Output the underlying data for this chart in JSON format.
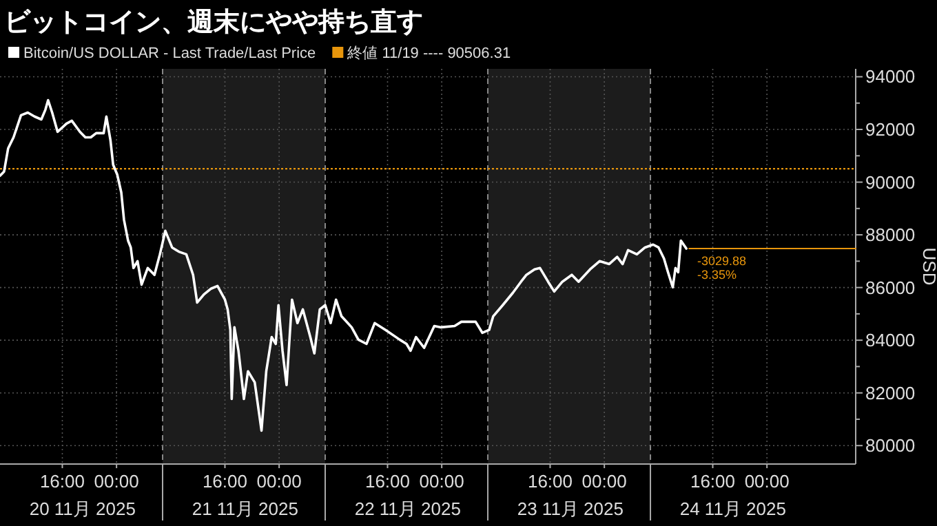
{
  "chart_data": {
    "type": "line",
    "title": "ビットコイン、週末にやや持ち直す",
    "ylabel": "USD",
    "xlim": [
      "2025-11-20T06:48",
      "2025-11-25T13:06"
    ],
    "ylim": [
      79300,
      94300
    ],
    "xticks": [
      {
        "value": "2025-11-20T16:00",
        "label": "16:00"
      },
      {
        "value": "2025-11-21T00:00",
        "label": "00:00"
      },
      {
        "value": "2025-11-21T16:00",
        "label": "16:00"
      },
      {
        "value": "2025-11-22T00:00",
        "label": "00:00"
      },
      {
        "value": "2025-11-22T16:00",
        "label": "16:00"
      },
      {
        "value": "2025-11-23T00:00",
        "label": "00:00"
      },
      {
        "value": "2025-11-23T16:00",
        "label": "16:00"
      },
      {
        "value": "2025-11-24T00:00",
        "label": "00:00"
      },
      {
        "value": "2025-11-24T16:00",
        "label": "16:00"
      },
      {
        "value": "2025-11-25T00:00",
        "label": "00:00"
      }
    ],
    "yticks": [
      80000,
      {
        "value": 81000,
        "label": null
      },
      82000,
      {
        "value": 83000,
        "label": null
      },
      84000,
      {
        "value": 85000,
        "label": null
      },
      86000,
      {
        "value": 87000,
        "label": null
      },
      88000,
      {
        "value": 89000,
        "label": null
      },
      90000,
      {
        "value": 91000,
        "label": null
      },
      92000,
      {
        "value": 93000,
        "label": null
      },
      94000
    ],
    "grid": true,
    "legend": "top left",
    "marker": "none",
    "line_style": "solid",
    "series": [
      {
        "name": "Bitcoin/US DOLLAR - Last Trade/Last Price",
        "color": "#ffffff",
        "x": [
          "2025-11-20T06:48",
          "2025-11-20T07:24",
          "2025-11-20T08:00",
          "2025-11-20T08:48",
          "2025-11-20T09:54",
          "2025-11-20T10:54",
          "2025-11-20T11:54",
          "2025-11-20T12:54",
          "2025-11-20T13:30",
          "2025-11-20T13:54",
          "2025-11-20T14:30",
          "2025-11-20T15:18",
          "2025-11-20T16:36",
          "2025-11-20T17:24",
          "2025-11-20T18:36",
          "2025-11-20T19:24",
          "2025-11-20T20:12",
          "2025-11-20T21:00",
          "2025-11-20T22:06",
          "2025-11-20T22:30",
          "2025-11-20T23:06",
          "2025-11-20T23:30",
          "2025-11-21T00:06",
          "2025-11-21T00:42",
          "2025-11-21T01:06",
          "2025-11-21T01:42",
          "2025-11-21T02:06",
          "2025-11-21T02:30",
          "2025-11-21T03:06",
          "2025-11-21T03:42",
          "2025-11-21T04:36",
          "2025-11-21T05:36",
          "2025-11-21T06:24",
          "2025-11-21T07:12",
          "2025-11-21T08:12",
          "2025-11-21T09:12",
          "2025-11-21T10:18",
          "2025-11-21T11:18",
          "2025-11-21T11:54",
          "2025-11-21T12:54",
          "2025-11-21T13:54",
          "2025-11-21T14:54",
          "2025-11-21T16:00",
          "2025-11-21T16:24",
          "2025-11-21T16:48",
          "2025-11-21T17:00",
          "2025-11-21T17:24",
          "2025-11-21T18:00",
          "2025-11-21T18:48",
          "2025-11-21T19:24",
          "2025-11-21T20:24",
          "2025-11-21T21:24",
          "2025-11-21T22:06",
          "2025-11-21T22:54",
          "2025-11-21T23:30",
          "2025-11-21T23:54",
          "2025-11-22T00:30",
          "2025-11-22T01:06",
          "2025-11-22T01:54",
          "2025-11-22T02:42",
          "2025-11-22T03:30",
          "2025-11-22T04:36",
          "2025-11-22T05:12",
          "2025-11-22T06:00",
          "2025-11-22T06:48",
          "2025-11-22T07:36",
          "2025-11-22T08:24",
          "2025-11-22T09:12",
          "2025-11-22T10:42",
          "2025-11-22T11:42",
          "2025-11-22T12:54",
          "2025-11-22T14:06",
          "2025-11-22T15:42",
          "2025-11-22T17:48",
          "2025-11-22T18:48",
          "2025-11-22T19:24",
          "2025-11-22T20:12",
          "2025-11-22T21:24",
          "2025-11-22T22:54",
          "2025-11-22T23:54",
          "2025-11-23T01:54",
          "2025-11-23T02:54",
          "2025-11-23T05:00",
          "2025-11-23T06:00",
          "2025-11-23T07:00",
          "2025-11-23T07:36",
          "2025-11-23T09:00",
          "2025-11-23T10:30",
          "2025-11-23T11:42",
          "2025-11-23T12:30",
          "2025-11-23T13:42",
          "2025-11-23T14:30",
          "2025-11-23T15:42",
          "2025-11-23T16:36",
          "2025-11-23T17:48",
          "2025-11-23T19:12",
          "2025-11-23T20:12",
          "2025-11-23T21:54",
          "2025-11-23T23:18",
          "2025-11-24T00:42",
          "2025-11-24T01:54",
          "2025-11-24T02:42",
          "2025-11-24T03:30",
          "2025-11-24T04:48",
          "2025-11-24T06:00",
          "2025-11-24T07:12",
          "2025-11-24T08:00",
          "2025-11-24T08:48",
          "2025-11-24T09:24",
          "2025-11-24T10:06",
          "2025-11-24T10:30",
          "2025-11-24T10:54",
          "2025-11-24T11:18",
          "2025-11-24T11:42",
          "2025-11-24T12:06"
        ],
        "values": [
          90240,
          90400,
          91280,
          91700,
          92540,
          92640,
          92490,
          92380,
          92750,
          93110,
          92640,
          91910,
          92220,
          92330,
          91910,
          91700,
          91700,
          91860,
          91860,
          92490,
          91600,
          90660,
          90290,
          89610,
          88570,
          87780,
          87520,
          86740,
          87000,
          86110,
          86740,
          86480,
          87260,
          88150,
          87520,
          87360,
          87260,
          86480,
          85430,
          85740,
          85950,
          86060,
          85540,
          85170,
          84390,
          81770,
          84490,
          83600,
          81770,
          82820,
          82400,
          80570,
          82820,
          84120,
          83860,
          85330,
          83600,
          82300,
          85540,
          84650,
          85170,
          84120,
          83500,
          85170,
          85330,
          84650,
          85540,
          84910,
          84490,
          84020,
          83860,
          84650,
          84390,
          84020,
          83860,
          83600,
          84120,
          83710,
          84540,
          84490,
          84540,
          84700,
          84700,
          84280,
          84390,
          84910,
          85330,
          85800,
          86220,
          86480,
          86690,
          86740,
          86220,
          85850,
          86220,
          86480,
          86220,
          86690,
          87000,
          86890,
          87160,
          86890,
          87420,
          87260,
          87520,
          87630,
          87520,
          87100,
          86580,
          86010,
          86740,
          86580,
          87780,
          87630,
          87480
        ]
      },
      {
        "type": "line",
        "color": "#e8960c",
        "x": [
          "2025-11-24T12:30",
          "2025-11-25T13:06"
        ],
        "values": [
          87480,
          87480
        ]
      }
    ],
    "ref_lines": [
      {
        "axis": "y",
        "value": 90506.31,
        "label": "終値 11/19 ---- 90506.31",
        "color": "#e8960c",
        "line_style": "dotted"
      }
    ],
    "bands": [
      {
        "axis": "x",
        "from": "2025-11-21T06:48",
        "to": "2025-11-22T06:48",
        "color": "#1c1c1c"
      },
      {
        "axis": "x",
        "from": "2025-11-23T06:48",
        "to": "2025-11-24T06:48",
        "color": "#1c1c1c"
      }
    ],
    "annotations": [
      {
        "text": "-3029.88",
        "x": "2025-11-24T12:30",
        "y": 87480
      },
      {
        "text": "-3.35%",
        "x": "2025-11-24T12:30",
        "y": 87480
      },
      "20 11月 2025",
      "21 11月 2025",
      "22 11月 2025",
      "23 11月 2025",
      "24 11月 2025"
    ]
  }
}
